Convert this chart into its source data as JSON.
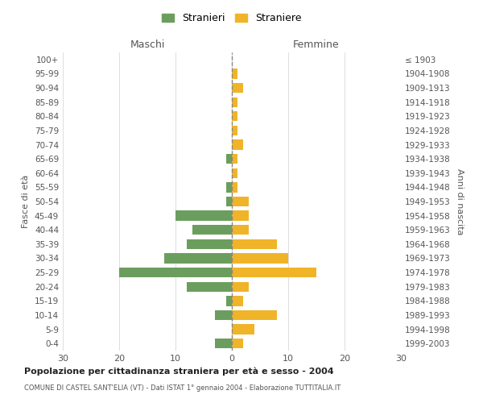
{
  "age_groups": [
    "100+",
    "95-99",
    "90-94",
    "85-89",
    "80-84",
    "75-79",
    "70-74",
    "65-69",
    "60-64",
    "55-59",
    "50-54",
    "45-49",
    "40-44",
    "35-39",
    "30-34",
    "25-29",
    "20-24",
    "15-19",
    "10-14",
    "5-9",
    "0-4"
  ],
  "birth_years": [
    "≤ 1903",
    "1904-1908",
    "1909-1913",
    "1914-1918",
    "1919-1923",
    "1924-1928",
    "1929-1933",
    "1934-1938",
    "1939-1943",
    "1944-1948",
    "1949-1953",
    "1954-1958",
    "1959-1963",
    "1964-1968",
    "1969-1973",
    "1974-1978",
    "1979-1983",
    "1984-1988",
    "1989-1993",
    "1994-1998",
    "1999-2003"
  ],
  "maschi": [
    0,
    0,
    0,
    0,
    0,
    0,
    0,
    1,
    0,
    1,
    1,
    10,
    7,
    8,
    12,
    20,
    8,
    1,
    3,
    0,
    3
  ],
  "femmine": [
    0,
    1,
    2,
    1,
    1,
    1,
    2,
    1,
    1,
    1,
    3,
    3,
    3,
    8,
    10,
    15,
    3,
    2,
    8,
    4,
    2
  ],
  "color_maschi": "#6b9e5e",
  "color_femmine": "#f0b429",
  "title": "Popolazione per cittadinanza straniera per età e sesso - 2004",
  "subtitle": "COMUNE DI CASTEL SANT'ELIA (VT) - Dati ISTAT 1° gennaio 2004 - Elaborazione TUTTITALIA.IT",
  "ylabel_left": "Fasce di età",
  "ylabel_right": "Anni di nascita",
  "xlabel_left": "Maschi",
  "xlabel_right": "Femmine",
  "legend_maschi": "Stranieri",
  "legend_femmine": "Straniere",
  "xlim": 30,
  "background_color": "#ffffff",
  "grid_color": "#d0d0d0"
}
